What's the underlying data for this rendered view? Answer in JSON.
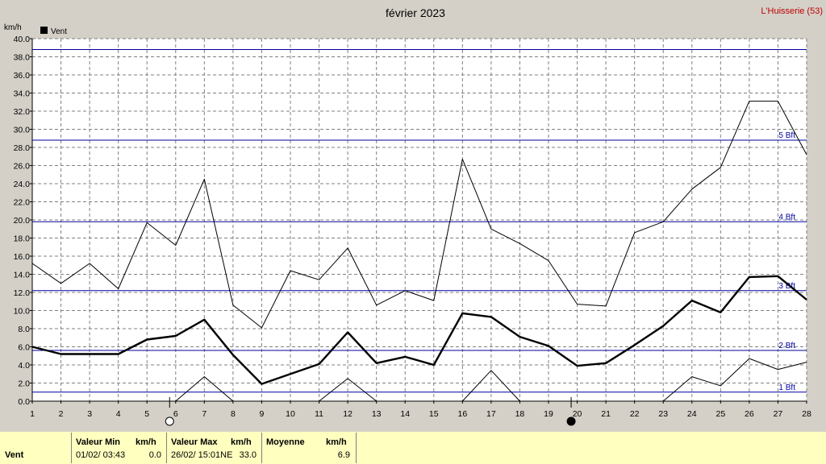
{
  "chart_data": {
    "type": "line",
    "title": "février 2023",
    "location": "L'Huisserie (53)",
    "ylabel": "km/h",
    "legend": "Vent",
    "legend_position": "top-left",
    "x": [
      1,
      2,
      3,
      4,
      5,
      6,
      7,
      8,
      9,
      10,
      11,
      12,
      13,
      14,
      15,
      16,
      17,
      18,
      19,
      20,
      21,
      22,
      23,
      24,
      25,
      26,
      27,
      28
    ],
    "ylim": [
      0,
      40
    ],
    "yticks": [
      "0.0",
      "2.0",
      "4.0",
      "6.0",
      "8.0",
      "10.0",
      "12.0",
      "14.0",
      "16.0",
      "18.0",
      "20.0",
      "22.0",
      "24.0",
      "26.0",
      "28.0",
      "30.0",
      "32.0",
      "34.0",
      "36.0",
      "38.0",
      "40.0"
    ],
    "grid": true,
    "series": [
      {
        "role": "max",
        "values": [
          15.2,
          13.0,
          15.2,
          12.4,
          19.7,
          17.2,
          24.5,
          10.6,
          8.1,
          14.4,
          13.4,
          16.9,
          10.6,
          12.2,
          11.1,
          26.7,
          19.0,
          17.4,
          15.5,
          10.7,
          10.5,
          18.6,
          19.8,
          23.4,
          25.8,
          33.1,
          33.1,
          27.2
        ]
      },
      {
        "role": "avg",
        "name": "Vent",
        "values": [
          6.0,
          5.2,
          5.2,
          5.2,
          6.8,
          7.2,
          9.0,
          5.1,
          1.9,
          3.0,
          4.1,
          7.6,
          4.2,
          4.9,
          4.0,
          9.7,
          9.3,
          7.1,
          6.1,
          3.9,
          4.2,
          6.2,
          8.3,
          11.1,
          9.8,
          13.7,
          13.8,
          11.2
        ]
      },
      {
        "role": "min",
        "values": [
          null,
          null,
          null,
          null,
          null,
          0.0,
          2.7,
          0.0,
          null,
          null,
          0.0,
          2.5,
          0.0,
          null,
          null,
          0.0,
          3.4,
          0.0,
          null,
          null,
          null,
          null,
          0.0,
          2.7,
          1.7,
          4.7,
          3.5,
          4.3
        ]
      }
    ],
    "beaufort": [
      {
        "value": 1.0,
        "label": "1 Bft"
      },
      {
        "value": 5.6,
        "label": "2 Bft"
      },
      {
        "value": 12.2,
        "label": "3 Bft"
      },
      {
        "value": 19.8,
        "label": "4 Bft"
      },
      {
        "value": 28.8,
        "label": "5 Bft"
      },
      {
        "value": 38.8,
        "label": ""
      }
    ],
    "moon_phases": [
      {
        "day": 6,
        "phase": "full-moon"
      },
      {
        "day": 20,
        "phase": "new-moon"
      }
    ],
    "colors": {
      "bg": "#d4d0c8",
      "plot": "#ffffff",
      "grid": "#808080",
      "bft": "#0000a0",
      "line": "#000000",
      "title_location": "#c00000",
      "footer": "#ffffc0"
    }
  },
  "footer": {
    "row_label": "Vent",
    "min_header": "Valeur Min",
    "min_unit": "km/h",
    "min_time": "01/02/  03:43",
    "min_value": "0.0",
    "max_header": "Valeur Max",
    "max_unit": "km/h",
    "max_time": "26/02/  15:01NE",
    "max_value": "33.0",
    "avg_header": "Moyenne",
    "avg_unit": "km/h",
    "avg_value": "6.9"
  }
}
